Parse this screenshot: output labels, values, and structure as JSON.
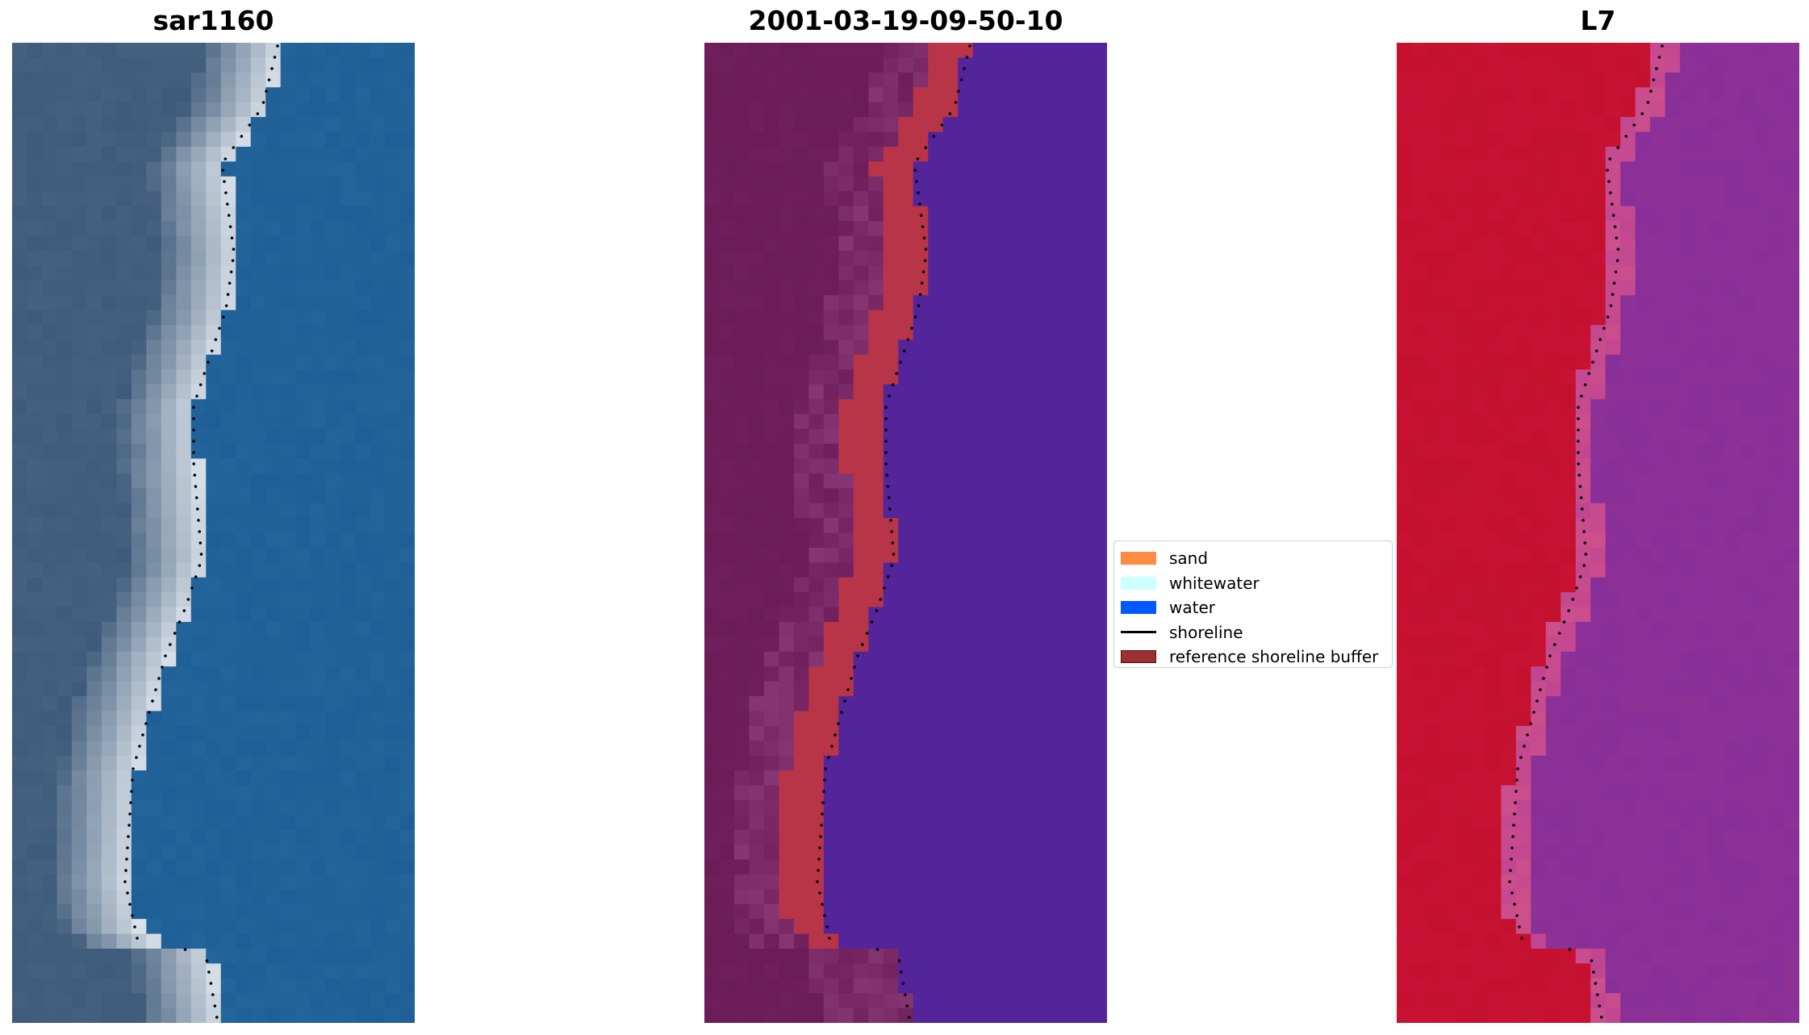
{
  "panels": [
    {
      "title": "sar1160"
    },
    {
      "title": "2001-03-19-09-50-10"
    },
    {
      "title": "L7"
    }
  ],
  "legend": {
    "items": [
      {
        "label": "sand",
        "color": "#ff8c42",
        "type": "patch"
      },
      {
        "label": "whitewater",
        "color": "#ccffff",
        "type": "patch"
      },
      {
        "label": "water",
        "color": "#0058ff",
        "type": "patch"
      },
      {
        "label": "shoreline",
        "color": "#000000",
        "type": "line"
      },
      {
        "label": "reference shoreline buffer",
        "color": "#9a3032",
        "type": "patch",
        "edge": "#5a1010"
      }
    ]
  },
  "colors": {
    "rgb_water": "#1f5f97",
    "rgb_land": "#45617f",
    "rgb_beach": "#dfe6ee",
    "class_water": "#53249a",
    "class_land": "#6f1f5c",
    "class_buffer": "#b83548",
    "swir_land": "#c4112e",
    "swir_water": "#8e3196",
    "swir_dark": "#5b12a8"
  }
}
